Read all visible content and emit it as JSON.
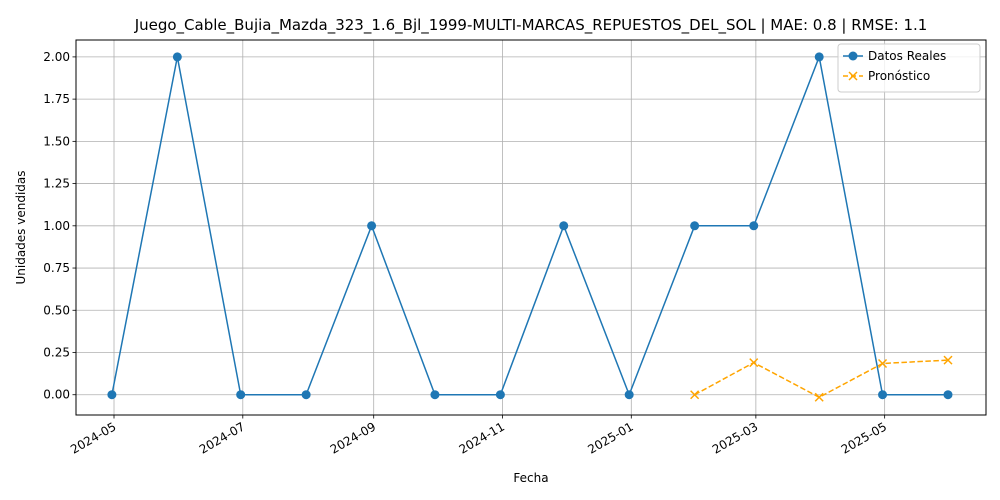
{
  "chart_data": {
    "type": "line",
    "title": "Juego_Cable_Bujia_Mazda_323_1.6_Bjl_1999-MULTI-MARCAS_REPUESTOS_DEL_SOL | MAE: 0.8 | RMSE: 1.1",
    "xlabel": "Fecha",
    "ylabel": "Unidades vendidas",
    "ylim": [
      -0.12,
      2.1
    ],
    "xlim": [
      "2024-04-13",
      "2025-06-18"
    ],
    "grid": true,
    "legend_position": "top-right",
    "x_ticks": [
      "2024-05-01",
      "2024-07-01",
      "2024-09-01",
      "2024-11-01",
      "2025-01-01",
      "2025-03-01",
      "2025-05-01"
    ],
    "x_tick_labels": [
      "2024-05",
      "2024-07",
      "2024-09",
      "2024-11",
      "2025-01",
      "2025-03",
      "2025-05"
    ],
    "y_ticks": [
      0.0,
      0.25,
      0.5,
      0.75,
      1.0,
      1.25,
      1.5,
      1.75,
      2.0
    ],
    "y_tick_labels": [
      "0.00",
      "0.25",
      "0.50",
      "0.75",
      "1.00",
      "1.25",
      "1.50",
      "1.75",
      "2.00"
    ],
    "series": [
      {
        "name": "Datos Reales",
        "color": "#1f77b4",
        "style": "solid",
        "marker": "circle",
        "x": [
          "2024-04-30",
          "2024-05-31",
          "2024-06-30",
          "2024-07-31",
          "2024-08-31",
          "2024-09-30",
          "2024-10-31",
          "2024-11-30",
          "2024-12-31",
          "2025-01-31",
          "2025-02-28",
          "2025-03-31",
          "2025-04-30",
          "2025-05-31"
        ],
        "values": [
          0,
          2,
          0,
          0,
          1,
          0,
          0,
          1,
          0,
          1,
          1,
          2,
          0,
          0
        ]
      },
      {
        "name": "Pronóstico",
        "color": "#ffa500",
        "style": "dashed",
        "marker": "x",
        "x": [
          "2025-01-31",
          "2025-02-28",
          "2025-03-31",
          "2025-04-30",
          "2025-05-31"
        ],
        "values": [
          0.0,
          0.19,
          -0.015,
          0.185,
          0.205
        ]
      }
    ]
  }
}
